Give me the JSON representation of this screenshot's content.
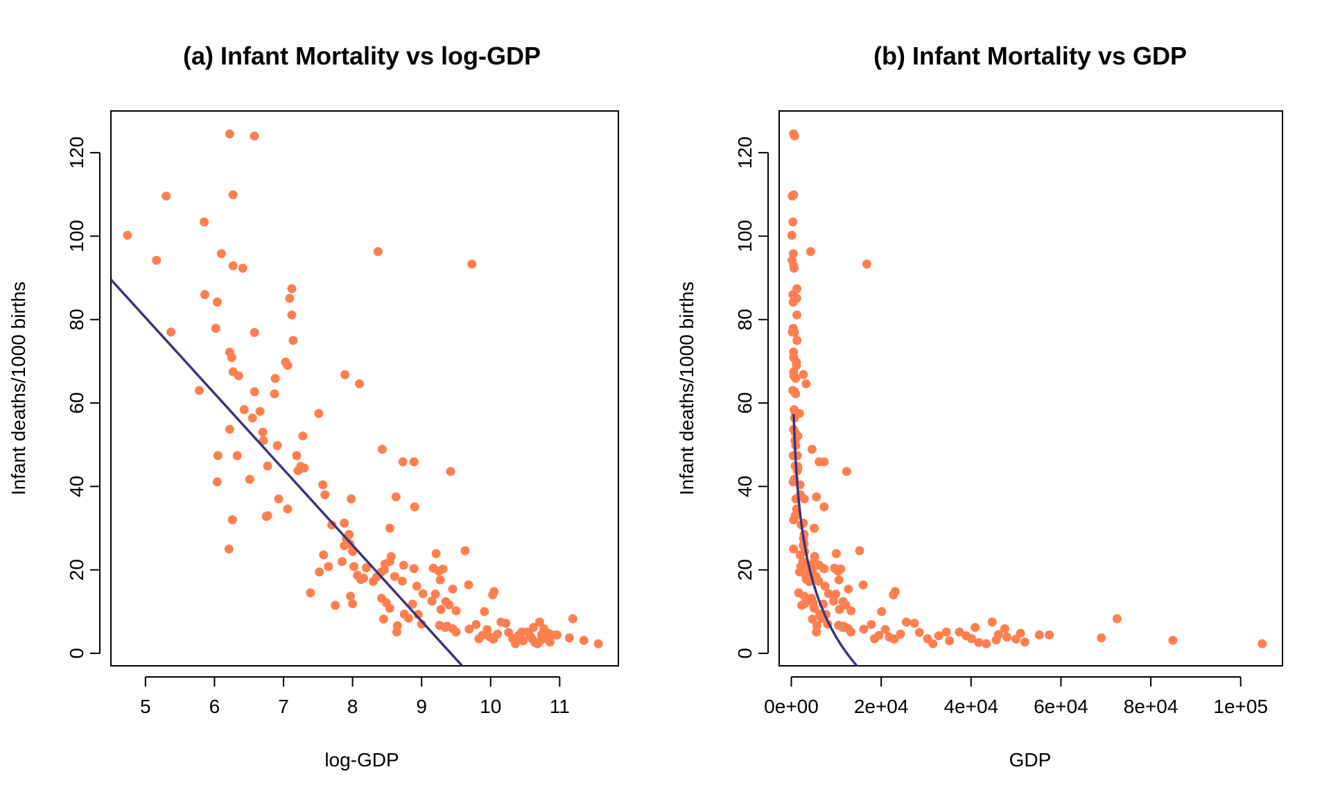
{
  "colors": {
    "points": "#FF7F50",
    "line": "#3A3580",
    "axis": "#000000"
  },
  "chart_data": [
    {
      "type": "scatter",
      "title": "(a) Infant Mortality vs log-GDP",
      "xlabel": "log-GDP",
      "ylabel": "Infant deaths/1000 births",
      "xlim": [
        4.5,
        11.85
      ],
      "ylim": [
        -3,
        130
      ],
      "xticks": [
        5,
        6,
        7,
        8,
        9,
        10,
        11
      ],
      "xtick_labels": [
        "5",
        "6",
        "7",
        "8",
        "9",
        "10",
        "11"
      ],
      "yticks": [
        0,
        20,
        40,
        60,
        80,
        100,
        120
      ],
      "ytick_labels": [
        "0",
        "20",
        "40",
        "60",
        "80",
        "100",
        "120"
      ],
      "points": [
        [
          6.22,
          124.5
        ],
        [
          6.58,
          124.0
        ],
        [
          5.3,
          109.6
        ],
        [
          6.27,
          109.9
        ],
        [
          4.74,
          100.2
        ],
        [
          5.85,
          103.4
        ],
        [
          6.1,
          95.8
        ],
        [
          5.16,
          94.2
        ],
        [
          6.27,
          92.9
        ],
        [
          6.41,
          92.3
        ],
        [
          8.37,
          96.3
        ],
        [
          9.73,
          93.3
        ],
        [
          5.37,
          77.0
        ],
        [
          6.04,
          84.2
        ],
        [
          5.86,
          86.0
        ],
        [
          6.02,
          77.9
        ],
        [
          6.58,
          76.9
        ],
        [
          7.12,
          87.4
        ],
        [
          7.09,
          85.1
        ],
        [
          7.12,
          81.1
        ],
        [
          7.14,
          75.0
        ],
        [
          6.22,
          72.2
        ],
        [
          6.25,
          70.9
        ],
        [
          6.27,
          67.5
        ],
        [
          6.35,
          66.5
        ],
        [
          7.03,
          69.8
        ],
        [
          7.06,
          69.0
        ],
        [
          6.88,
          65.9
        ],
        [
          5.78,
          63.0
        ],
        [
          6.58,
          62.7
        ],
        [
          6.87,
          62.2
        ],
        [
          7.89,
          66.8
        ],
        [
          8.1,
          64.6
        ],
        [
          6.43,
          58.4
        ],
        [
          6.66,
          58.0
        ],
        [
          6.55,
          56.4
        ],
        [
          7.51,
          57.5
        ],
        [
          6.22,
          53.7
        ],
        [
          6.7,
          53.0
        ],
        [
          6.71,
          51.0
        ],
        [
          7.28,
          52.1
        ],
        [
          6.91,
          49.8
        ],
        [
          6.05,
          47.4
        ],
        [
          6.33,
          47.4
        ],
        [
          7.19,
          47.4
        ],
        [
          7.25,
          44.8
        ],
        [
          7.3,
          44.4
        ],
        [
          7.21,
          43.8
        ],
        [
          6.77,
          44.9
        ],
        [
          6.51,
          41.7
        ],
        [
          6.04,
          41.1
        ],
        [
          8.43,
          48.9
        ],
        [
          8.73,
          45.9
        ],
        [
          8.89,
          45.9
        ],
        [
          9.42,
          43.6
        ],
        [
          7.57,
          40.4
        ],
        [
          7.6,
          38.0
        ],
        [
          7.98,
          37.0
        ],
        [
          8.63,
          37.5
        ],
        [
          6.93,
          37.0
        ],
        [
          7.06,
          34.6
        ],
        [
          6.77,
          33.0
        ],
        [
          6.75,
          32.8
        ],
        [
          6.26,
          32.0
        ],
        [
          7.7,
          30.8
        ],
        [
          7.88,
          31.2
        ],
        [
          8.54,
          30.0
        ],
        [
          8.9,
          35.1
        ],
        [
          6.21,
          25.0
        ],
        [
          7.91,
          27.5
        ],
        [
          7.95,
          28.5
        ],
        [
          7.96,
          26.2
        ],
        [
          7.88,
          25.8
        ],
        [
          8.0,
          24.4
        ],
        [
          7.58,
          23.6
        ],
        [
          7.85,
          22.0
        ],
        [
          8.02,
          20.8
        ],
        [
          7.65,
          20.8
        ],
        [
          7.52,
          19.5
        ],
        [
          8.2,
          20.5
        ],
        [
          8.46,
          20.0
        ],
        [
          8.47,
          21.4
        ],
        [
          8.56,
          23.2
        ],
        [
          8.54,
          22.0
        ],
        [
          8.74,
          21.1
        ],
        [
          8.89,
          20.3
        ],
        [
          9.21,
          23.9
        ],
        [
          9.17,
          20.4
        ],
        [
          9.25,
          19.7
        ],
        [
          9.31,
          20.2
        ],
        [
          9.63,
          24.6
        ],
        [
          8.07,
          18.7
        ],
        [
          8.12,
          17.7
        ],
        [
          8.16,
          18.0
        ],
        [
          8.3,
          17.2
        ],
        [
          8.35,
          18.3
        ],
        [
          8.41,
          19.4
        ],
        [
          8.61,
          18.4
        ],
        [
          8.72,
          17.3
        ],
        [
          8.93,
          16.1
        ],
        [
          9.27,
          17.6
        ],
        [
          9.68,
          16.4
        ],
        [
          9.45,
          15.4
        ],
        [
          9.02,
          14.3
        ],
        [
          9.2,
          14.2
        ],
        [
          10.05,
          14.8
        ],
        [
          10.03,
          14.0
        ],
        [
          7.39,
          14.5
        ],
        [
          7.97,
          13.7
        ],
        [
          8.42,
          13.2
        ],
        [
          8.49,
          12.1
        ],
        [
          8.87,
          11.8
        ],
        [
          9.15,
          12.5
        ],
        [
          9.4,
          11.6
        ],
        [
          9.35,
          12.4
        ],
        [
          7.75,
          11.5
        ],
        [
          8.0,
          11.9
        ],
        [
          8.54,
          10.8
        ],
        [
          8.75,
          9.4
        ],
        [
          8.95,
          9.3
        ],
        [
          9.28,
          10.5
        ],
        [
          9.5,
          10.2
        ],
        [
          9.91,
          10.0
        ],
        [
          8.45,
          8.2
        ],
        [
          8.81,
          8.4
        ],
        [
          9.0,
          7.0
        ],
        [
          8.65,
          6.6
        ],
        [
          8.64,
          5.1
        ],
        [
          9.26,
          6.7
        ],
        [
          9.34,
          6.2
        ],
        [
          9.37,
          6.5
        ],
        [
          9.45,
          5.9
        ],
        [
          9.5,
          5.1
        ],
        [
          9.69,
          5.8
        ],
        [
          9.79,
          6.9
        ],
        [
          9.83,
          3.5
        ],
        [
          9.88,
          4.3
        ],
        [
          9.95,
          5.7
        ],
        [
          9.99,
          3.9
        ],
        [
          10.04,
          3.4
        ],
        [
          10.1,
          4.6
        ],
        [
          10.15,
          7.5
        ],
        [
          10.22,
          7.2
        ],
        [
          10.26,
          5.0
        ],
        [
          10.32,
          3.5
        ],
        [
          10.36,
          2.3
        ],
        [
          10.4,
          4.2
        ],
        [
          10.45,
          5.1
        ],
        [
          10.47,
          3.0
        ],
        [
          10.53,
          5.1
        ],
        [
          10.57,
          4.2
        ],
        [
          10.6,
          3.5
        ],
        [
          10.62,
          6.2
        ],
        [
          10.64,
          2.6
        ],
        [
          10.68,
          2.3
        ],
        [
          10.71,
          7.5
        ],
        [
          10.73,
          3.2
        ],
        [
          10.74,
          4.5
        ],
        [
          10.77,
          5.9
        ],
        [
          10.78,
          3.9
        ],
        [
          10.82,
          3.4
        ],
        [
          10.84,
          4.8
        ],
        [
          10.86,
          2.7
        ],
        [
          10.92,
          4.4
        ],
        [
          10.96,
          4.4
        ],
        [
          11.14,
          3.7
        ],
        [
          11.19,
          8.3
        ],
        [
          11.35,
          3.1
        ],
        [
          11.56,
          2.3
        ]
      ],
      "fit": {
        "form": "linear",
        "intercept": 171.5,
        "slope": -18.2
      }
    },
    {
      "type": "scatter",
      "title": "(b) Infant Mortality vs GDP",
      "xlabel": "GDP",
      "ylabel": "Infant deaths/1000 births",
      "xlim": [
        -2700,
        109300
      ],
      "ylim": [
        -3,
        130
      ],
      "xticks": [
        0,
        20000,
        40000,
        60000,
        80000,
        100000
      ],
      "xtick_labels": [
        "0e+00",
        "2e+04",
        "4e+04",
        "6e+04",
        "8e+04",
        "1e+05"
      ],
      "yticks": [
        0,
        20,
        40,
        60,
        80,
        100,
        120
      ],
      "ytick_labels": [
        "0",
        "20",
        "40",
        "60",
        "80",
        "100",
        "120"
      ],
      "points": [
        [
          500,
          124.5
        ],
        [
          720,
          124.0
        ],
        [
          200,
          109.6
        ],
        [
          530,
          109.9
        ],
        [
          114,
          100.2
        ],
        [
          350,
          103.4
        ],
        [
          450,
          95.8
        ],
        [
          170,
          94.2
        ],
        [
          530,
          92.9
        ],
        [
          610,
          92.3
        ],
        [
          4300,
          96.3
        ],
        [
          16800,
          93.3
        ],
        [
          215,
          77.0
        ],
        [
          420,
          84.2
        ],
        [
          350,
          86.0
        ],
        [
          410,
          77.9
        ],
        [
          720,
          76.9
        ],
        [
          1240,
          87.4
        ],
        [
          1200,
          85.1
        ],
        [
          1240,
          81.1
        ],
        [
          1260,
          75.0
        ],
        [
          500,
          72.2
        ],
        [
          520,
          70.9
        ],
        [
          530,
          67.5
        ],
        [
          570,
          66.5
        ],
        [
          1130,
          69.8
        ],
        [
          1160,
          69.0
        ],
        [
          970,
          65.9
        ],
        [
          320,
          63.0
        ],
        [
          720,
          62.7
        ],
        [
          960,
          62.2
        ],
        [
          2670,
          66.8
        ],
        [
          3300,
          64.6
        ],
        [
          620,
          58.4
        ],
        [
          780,
          58.0
        ],
        [
          700,
          56.4
        ],
        [
          1830,
          57.5
        ],
        [
          500,
          53.7
        ],
        [
          810,
          53.0
        ],
        [
          820,
          51.0
        ],
        [
          1450,
          52.1
        ],
        [
          1000,
          49.8
        ],
        [
          420,
          47.4
        ],
        [
          560,
          47.4
        ],
        [
          1330,
          47.4
        ],
        [
          1410,
          44.8
        ],
        [
          1480,
          44.4
        ],
        [
          1350,
          43.8
        ],
        [
          870,
          44.9
        ],
        [
          670,
          41.7
        ],
        [
          420,
          41.1
        ],
        [
          4600,
          48.9
        ],
        [
          6200,
          45.9
        ],
        [
          7300,
          45.9
        ],
        [
          12300,
          43.6
        ],
        [
          1940,
          40.4
        ],
        [
          2000,
          38.0
        ],
        [
          2900,
          37.0
        ],
        [
          5600,
          37.5
        ],
        [
          1020,
          37.0
        ],
        [
          1160,
          34.6
        ],
        [
          870,
          33.0
        ],
        [
          850,
          32.8
        ],
        [
          525,
          32.0
        ],
        [
          2200,
          30.8
        ],
        [
          2650,
          31.2
        ],
        [
          5100,
          30.0
        ],
        [
          7300,
          35.1
        ],
        [
          500,
          25.0
        ],
        [
          2720,
          27.5
        ],
        [
          2840,
          28.5
        ],
        [
          2870,
          26.2
        ],
        [
          2650,
          25.8
        ],
        [
          2980,
          24.4
        ],
        [
          1960,
          23.6
        ],
        [
          2560,
          22.0
        ],
        [
          3030,
          20.8
        ],
        [
          2100,
          20.8
        ],
        [
          1840,
          19.5
        ],
        [
          3650,
          20.5
        ],
        [
          4720,
          20.0
        ],
        [
          4760,
          21.4
        ],
        [
          5200,
          23.2
        ],
        [
          5100,
          22.0
        ],
        [
          6250,
          21.1
        ],
        [
          7300,
          20.3
        ],
        [
          10000,
          23.9
        ],
        [
          9600,
          20.4
        ],
        [
          10400,
          19.7
        ],
        [
          11000,
          20.2
        ],
        [
          15200,
          24.6
        ],
        [
          3200,
          18.7
        ],
        [
          3350,
          17.7
        ],
        [
          3500,
          18.0
        ],
        [
          4000,
          17.2
        ],
        [
          4230,
          18.3
        ],
        [
          4500,
          19.4
        ],
        [
          5500,
          18.4
        ],
        [
          6100,
          17.3
        ],
        [
          7500,
          16.1
        ],
        [
          10600,
          17.6
        ],
        [
          16000,
          16.4
        ],
        [
          12700,
          15.4
        ],
        [
          8300,
          14.3
        ],
        [
          9900,
          14.2
        ],
        [
          23100,
          14.8
        ],
        [
          22700,
          14.0
        ],
        [
          1620,
          14.5
        ],
        [
          2900,
          13.7
        ],
        [
          4500,
          13.2
        ],
        [
          4850,
          12.1
        ],
        [
          7100,
          11.8
        ],
        [
          9400,
          12.5
        ],
        [
          12100,
          11.6
        ],
        [
          11500,
          12.4
        ],
        [
          2320,
          11.5
        ],
        [
          2980,
          11.9
        ],
        [
          5100,
          10.8
        ],
        [
          6300,
          9.4
        ],
        [
          7700,
          9.3
        ],
        [
          10700,
          10.5
        ],
        [
          13300,
          10.2
        ],
        [
          20100,
          10.0
        ],
        [
          4700,
          8.2
        ],
        [
          6700,
          8.4
        ],
        [
          8100,
          7.0
        ],
        [
          5700,
          6.6
        ],
        [
          5600,
          5.1
        ],
        [
          10500,
          6.7
        ],
        [
          11400,
          6.2
        ],
        [
          11700,
          6.5
        ],
        [
          12700,
          5.9
        ],
        [
          13300,
          5.1
        ],
        [
          16100,
          5.8
        ],
        [
          17800,
          6.9
        ],
        [
          18500,
          3.5
        ],
        [
          19500,
          4.3
        ],
        [
          20900,
          5.7
        ],
        [
          21800,
          3.9
        ],
        [
          22900,
          3.4
        ],
        [
          24300,
          4.6
        ],
        [
          25600,
          7.5
        ],
        [
          27400,
          7.2
        ],
        [
          28500,
          5.0
        ],
        [
          30300,
          3.5
        ],
        [
          31500,
          2.3
        ],
        [
          32800,
          4.2
        ],
        [
          34500,
          5.1
        ],
        [
          35200,
          3.0
        ],
        [
          37400,
          5.1
        ],
        [
          38900,
          4.2
        ],
        [
          40100,
          3.5
        ],
        [
          40900,
          6.2
        ],
        [
          41700,
          2.6
        ],
        [
          43400,
          2.3
        ],
        [
          44700,
          7.5
        ],
        [
          45600,
          3.2
        ],
        [
          46100,
          4.5
        ],
        [
          47500,
          5.9
        ],
        [
          48000,
          3.9
        ],
        [
          50000,
          3.4
        ],
        [
          51000,
          4.8
        ],
        [
          52000,
          2.7
        ],
        [
          55200,
          4.4
        ],
        [
          57400,
          4.4
        ],
        [
          69000,
          3.7
        ],
        [
          72500,
          8.3
        ],
        [
          84900,
          3.1
        ],
        [
          104800,
          2.3
        ]
      ],
      "fit": {
        "form": "log",
        "intercept": 171.5,
        "slope": -18.2,
        "x_from": 530,
        "x_to": 60000
      }
    }
  ]
}
